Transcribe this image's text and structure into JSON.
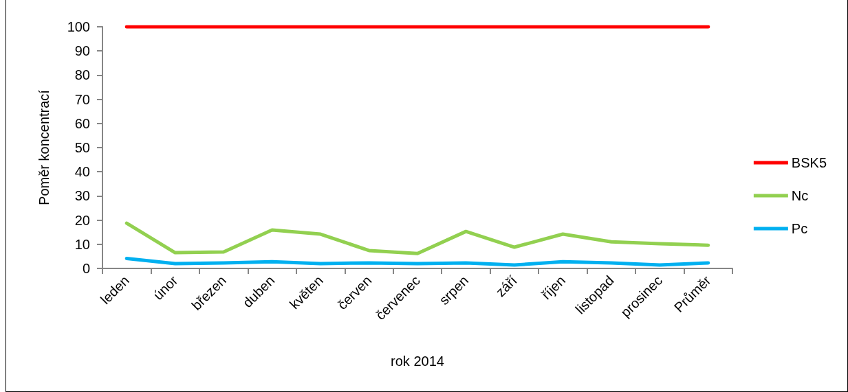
{
  "chart_data": {
    "type": "line",
    "xlabel": "rok 2014",
    "ylabel": "Poměr koncentrací",
    "categories": [
      "leden",
      "únor",
      "březen",
      "duben",
      "květen",
      "červen",
      "červenec",
      "srpen",
      "září",
      "říjen",
      "listopad",
      "prosinec",
      "Průměr"
    ],
    "series": [
      {
        "name": "BSK5",
        "color": "#ff0000",
        "values": [
          100,
          100,
          100,
          100,
          100,
          100,
          100,
          100,
          100,
          100,
          100,
          100,
          100
        ]
      },
      {
        "name": "Nc",
        "color": "#92d050",
        "values": [
          18.7,
          6.5,
          6.8,
          15.9,
          14.2,
          7.4,
          6.2,
          15.3,
          8.8,
          14.2,
          11,
          10.2,
          9.6
        ]
      },
      {
        "name": "Pc",
        "color": "#00b0f0",
        "values": [
          4.1,
          2,
          2.3,
          2.8,
          2,
          2.3,
          2,
          2.3,
          1.4,
          2.8,
          2.3,
          1.4,
          2.3
        ]
      }
    ],
    "ylim": [
      0,
      100
    ],
    "yticks": [
      0,
      10,
      20,
      30,
      40,
      50,
      60,
      70,
      80,
      90,
      100
    ],
    "grid": false,
    "legend": "right",
    "marker": "none",
    "line_style": "solid"
  }
}
